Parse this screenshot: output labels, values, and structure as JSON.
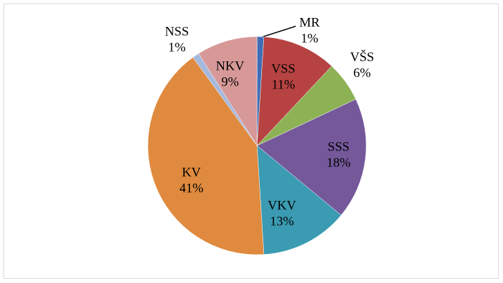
{
  "chart_data": {
    "type": "pie",
    "categories": [
      "MR",
      "VSS",
      "VŠS",
      "SSS",
      "VKV",
      "KV",
      "NSS",
      "NKV"
    ],
    "values": [
      1,
      11,
      6,
      18,
      13,
      41,
      1,
      9
    ],
    "value_labels": [
      "1%",
      "11%",
      "6%",
      "18%",
      "13%",
      "41%",
      "1%",
      "9%"
    ],
    "colors": [
      "#3f6db5",
      "#b64342",
      "#8db255",
      "#74589a",
      "#3b9bb2",
      "#df8a3e",
      "#a5b8dd",
      "#d69998"
    ]
  }
}
